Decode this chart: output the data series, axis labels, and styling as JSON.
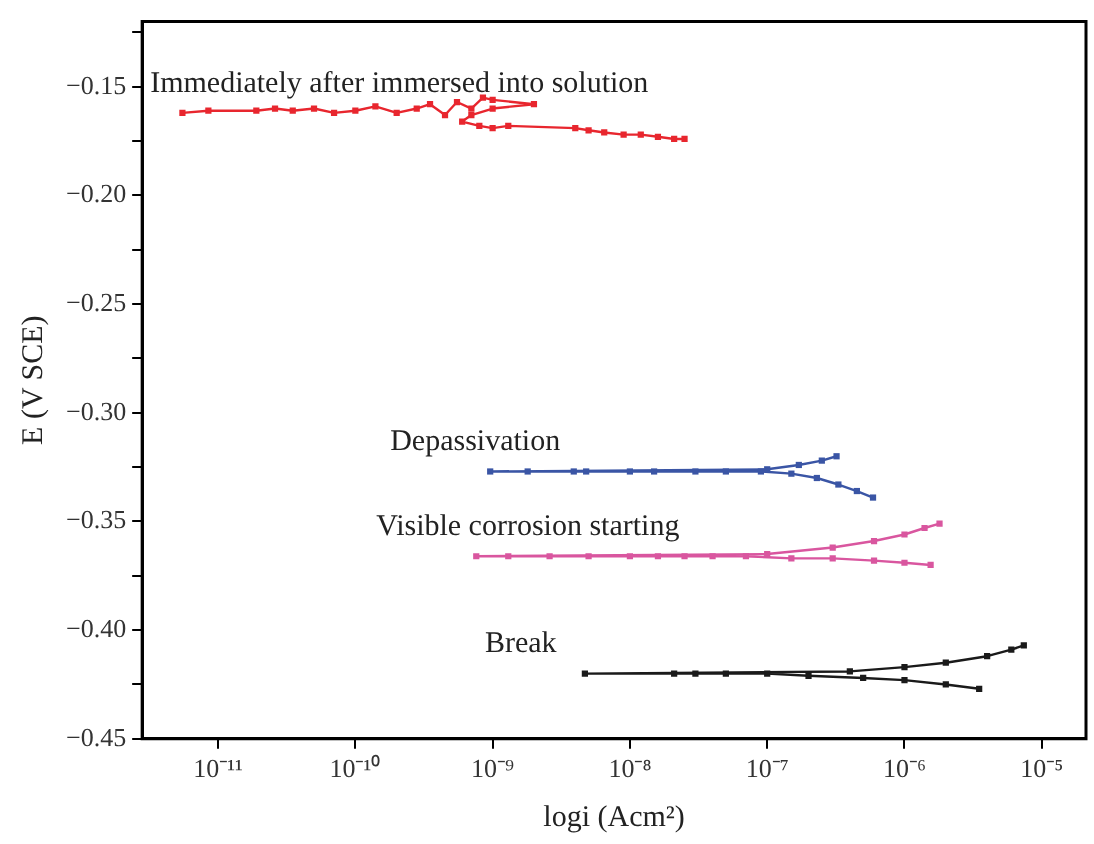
{
  "chart_data": {
    "type": "line",
    "xlabel": "logi (Acm²)",
    "ylabel": "E (V SCE)",
    "log": "x",
    "marker": "square",
    "line_style": "solid",
    "grid": false,
    "xlim": [
      2.8e-12,
      2.1e-05
    ],
    "ylim": [
      -0.45,
      -0.12
    ],
    "xticks": [
      {
        "value": 1e-11,
        "label": "10⁻¹¹"
      },
      {
        "value": 1e-10,
        "label": "10⁻¹⁰"
      },
      {
        "value": 1e-09,
        "label": "10⁻⁹"
      },
      {
        "value": 1e-08,
        "label": "10⁻⁸"
      },
      {
        "value": 1e-07,
        "label": "10⁻⁷"
      },
      {
        "value": 1e-06,
        "label": "10⁻⁶"
      },
      {
        "value": 1e-05,
        "label": "10⁻⁵"
      }
    ],
    "yticks": [
      {
        "value": -0.125,
        "label": null
      },
      {
        "value": -0.15,
        "label": "−0.15"
      },
      {
        "value": -0.175,
        "label": null
      },
      {
        "value": -0.2,
        "label": "−0.20"
      },
      {
        "value": -0.225,
        "label": null
      },
      {
        "value": -0.25,
        "label": "−0.25"
      },
      {
        "value": -0.275,
        "label": null
      },
      {
        "value": -0.3,
        "label": "−0.30"
      },
      {
        "value": -0.325,
        "label": null
      },
      {
        "value": -0.35,
        "label": "−0.35"
      },
      {
        "value": -0.375,
        "label": null
      },
      {
        "value": -0.4,
        "label": "−0.40"
      },
      {
        "value": -0.425,
        "label": null
      },
      {
        "value": -0.45,
        "label": "−0.45"
      }
    ],
    "series": [
      {
        "name": "Immediately after immersed into solution",
        "color": "#e8262e",
        "x": [
          5.5e-12,
          8.5e-12,
          1.9e-11,
          2.6e-11,
          3.5e-11,
          5e-11,
          7e-11,
          1e-10,
          1.4e-10,
          2e-10,
          2.8e-10,
          3.5e-10,
          4.5e-10,
          5.5e-10,
          7e-10,
          8.5e-10,
          1e-09,
          2e-09,
          1e-09,
          7e-10,
          6e-10,
          8e-10,
          1e-09,
          1.3e-09,
          4e-09,
          5e-09,
          6.5e-09,
          9e-09,
          1.2e-08,
          1.6e-08,
          2.1e-08,
          2.5e-08
        ],
        "values": [
          -0.162,
          -0.161,
          -0.161,
          -0.16,
          -0.161,
          -0.16,
          -0.162,
          -0.161,
          -0.159,
          -0.162,
          -0.16,
          -0.158,
          -0.163,
          -0.157,
          -0.16,
          -0.155,
          -0.156,
          -0.158,
          -0.16,
          -0.163,
          -0.166,
          -0.168,
          -0.169,
          -0.168,
          -0.169,
          -0.17,
          -0.171,
          -0.172,
          -0.172,
          -0.173,
          -0.174,
          -0.174
        ]
      },
      {
        "name": "Depassivation",
        "color": "#3a55a5",
        "x": [
          5.9e-07,
          4.5e-07,
          3.3e-07,
          2.3e-07,
          1.5e-07,
          9e-08,
          5e-08,
          3e-08,
          1.5e-08,
          1e-08,
          4.8e-09,
          3.9e-09,
          1.8e-09,
          9.6e-10,
          1e-07,
          1.7e-07,
          2.5e-07,
          3.2e-07
        ],
        "values": [
          -0.339,
          -0.336,
          -0.333,
          -0.33,
          -0.328,
          -0.327,
          -0.327,
          -0.327,
          -0.327,
          -0.327,
          -0.327,
          -0.327,
          -0.327,
          -0.327,
          -0.326,
          -0.324,
          -0.322,
          -0.32
        ]
      },
      {
        "name": "Visible corrosion starting",
        "color": "#d9569f",
        "x": [
          1.55e-06,
          1e-06,
          6e-07,
          3e-07,
          1.5e-07,
          7e-08,
          4e-08,
          2.5e-08,
          1.6e-08,
          1e-08,
          5e-09,
          2.6e-09,
          1.3e-09,
          7.6e-10,
          1e-07,
          3e-07,
          6e-07,
          1e-06,
          1.4e-06,
          1.8e-06
        ],
        "values": [
          -0.37,
          -0.369,
          -0.368,
          -0.367,
          -0.367,
          -0.366,
          -0.366,
          -0.366,
          -0.366,
          -0.366,
          -0.366,
          -0.366,
          -0.366,
          -0.366,
          -0.365,
          -0.362,
          -0.359,
          -0.356,
          -0.353,
          -0.351
        ]
      },
      {
        "name": "Break",
        "color": "#1a1a1a",
        "x": [
          3.5e-06,
          2e-06,
          1e-06,
          5e-07,
          2e-07,
          1e-07,
          5e-08,
          3e-08,
          2.1e-08,
          4.7e-09,
          4e-07,
          1e-06,
          2e-06,
          4e-06,
          6e-06,
          7.4e-06
        ],
        "values": [
          -0.427,
          -0.425,
          -0.423,
          -0.422,
          -0.421,
          -0.42,
          -0.42,
          -0.42,
          -0.42,
          -0.42,
          -0.419,
          -0.417,
          -0.415,
          -0.412,
          -0.409,
          -0.407
        ]
      }
    ]
  }
}
